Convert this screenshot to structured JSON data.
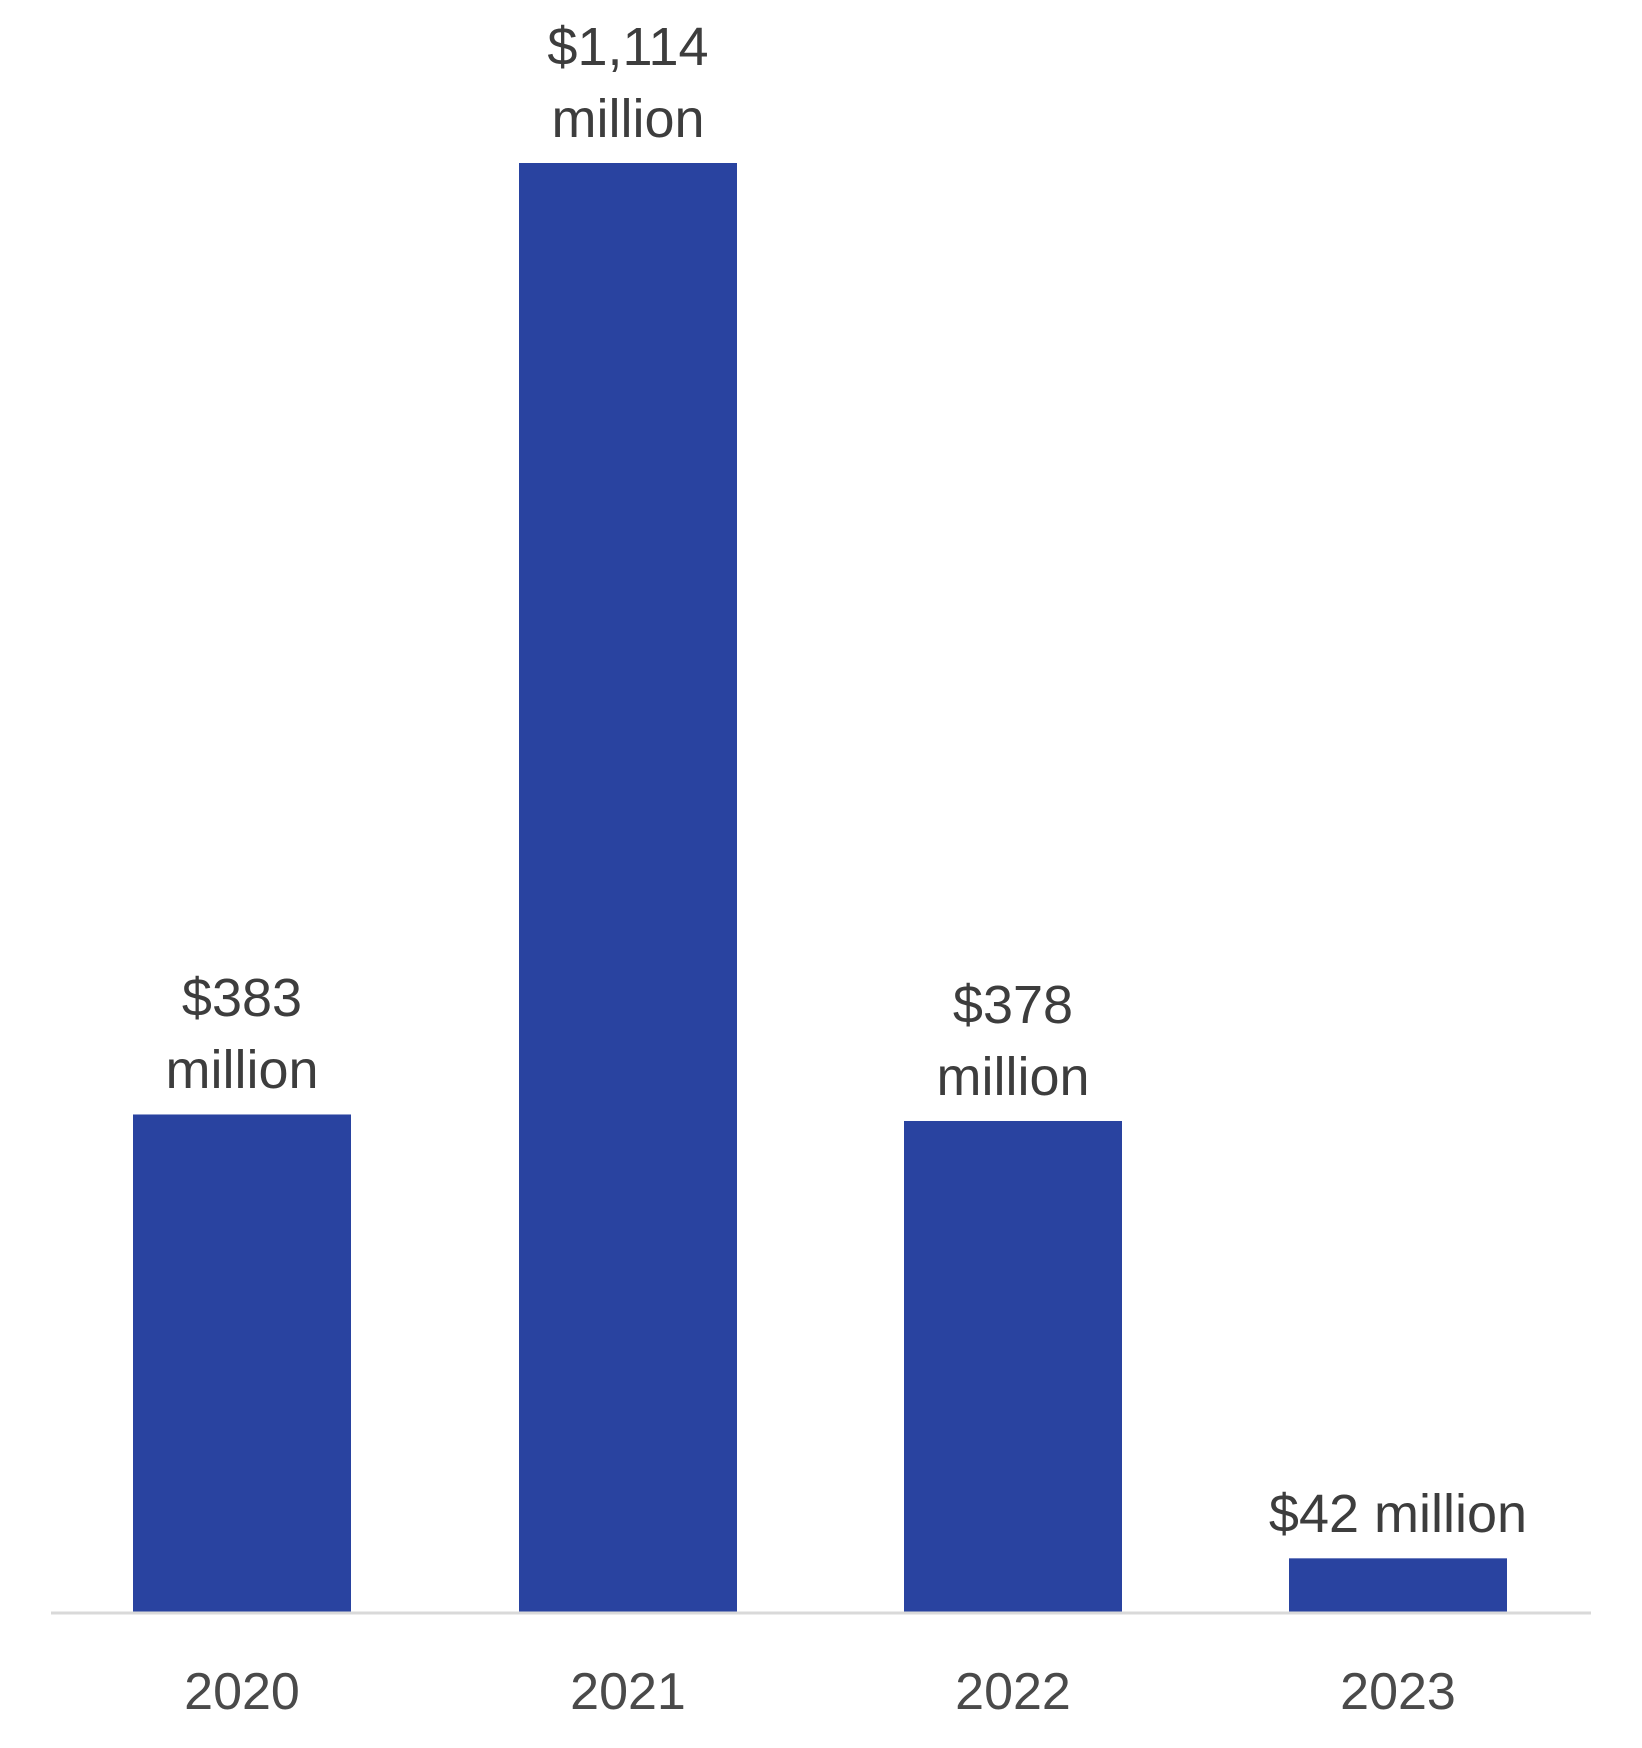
{
  "chart_data": {
    "type": "bar",
    "title": "",
    "xlabel": "",
    "ylabel": "",
    "categories": [
      "2020",
      "2021",
      "2022",
      "2023"
    ],
    "values": [
      383,
      1114,
      378,
      42
    ],
    "unit": "million USD",
    "data_labels": [
      [
        "$383",
        "million"
      ],
      [
        "$1,114",
        "million"
      ],
      [
        "$378",
        "million"
      ],
      [
        "$42 million"
      ]
    ],
    "ylim": [
      0,
      1114
    ],
    "grid": false,
    "legend": "none",
    "colors": {
      "bar": "#2943a0",
      "axis": "#d9d9d9",
      "label_text": "#3d3d3d",
      "tick_text": "#4a4a4a"
    }
  }
}
